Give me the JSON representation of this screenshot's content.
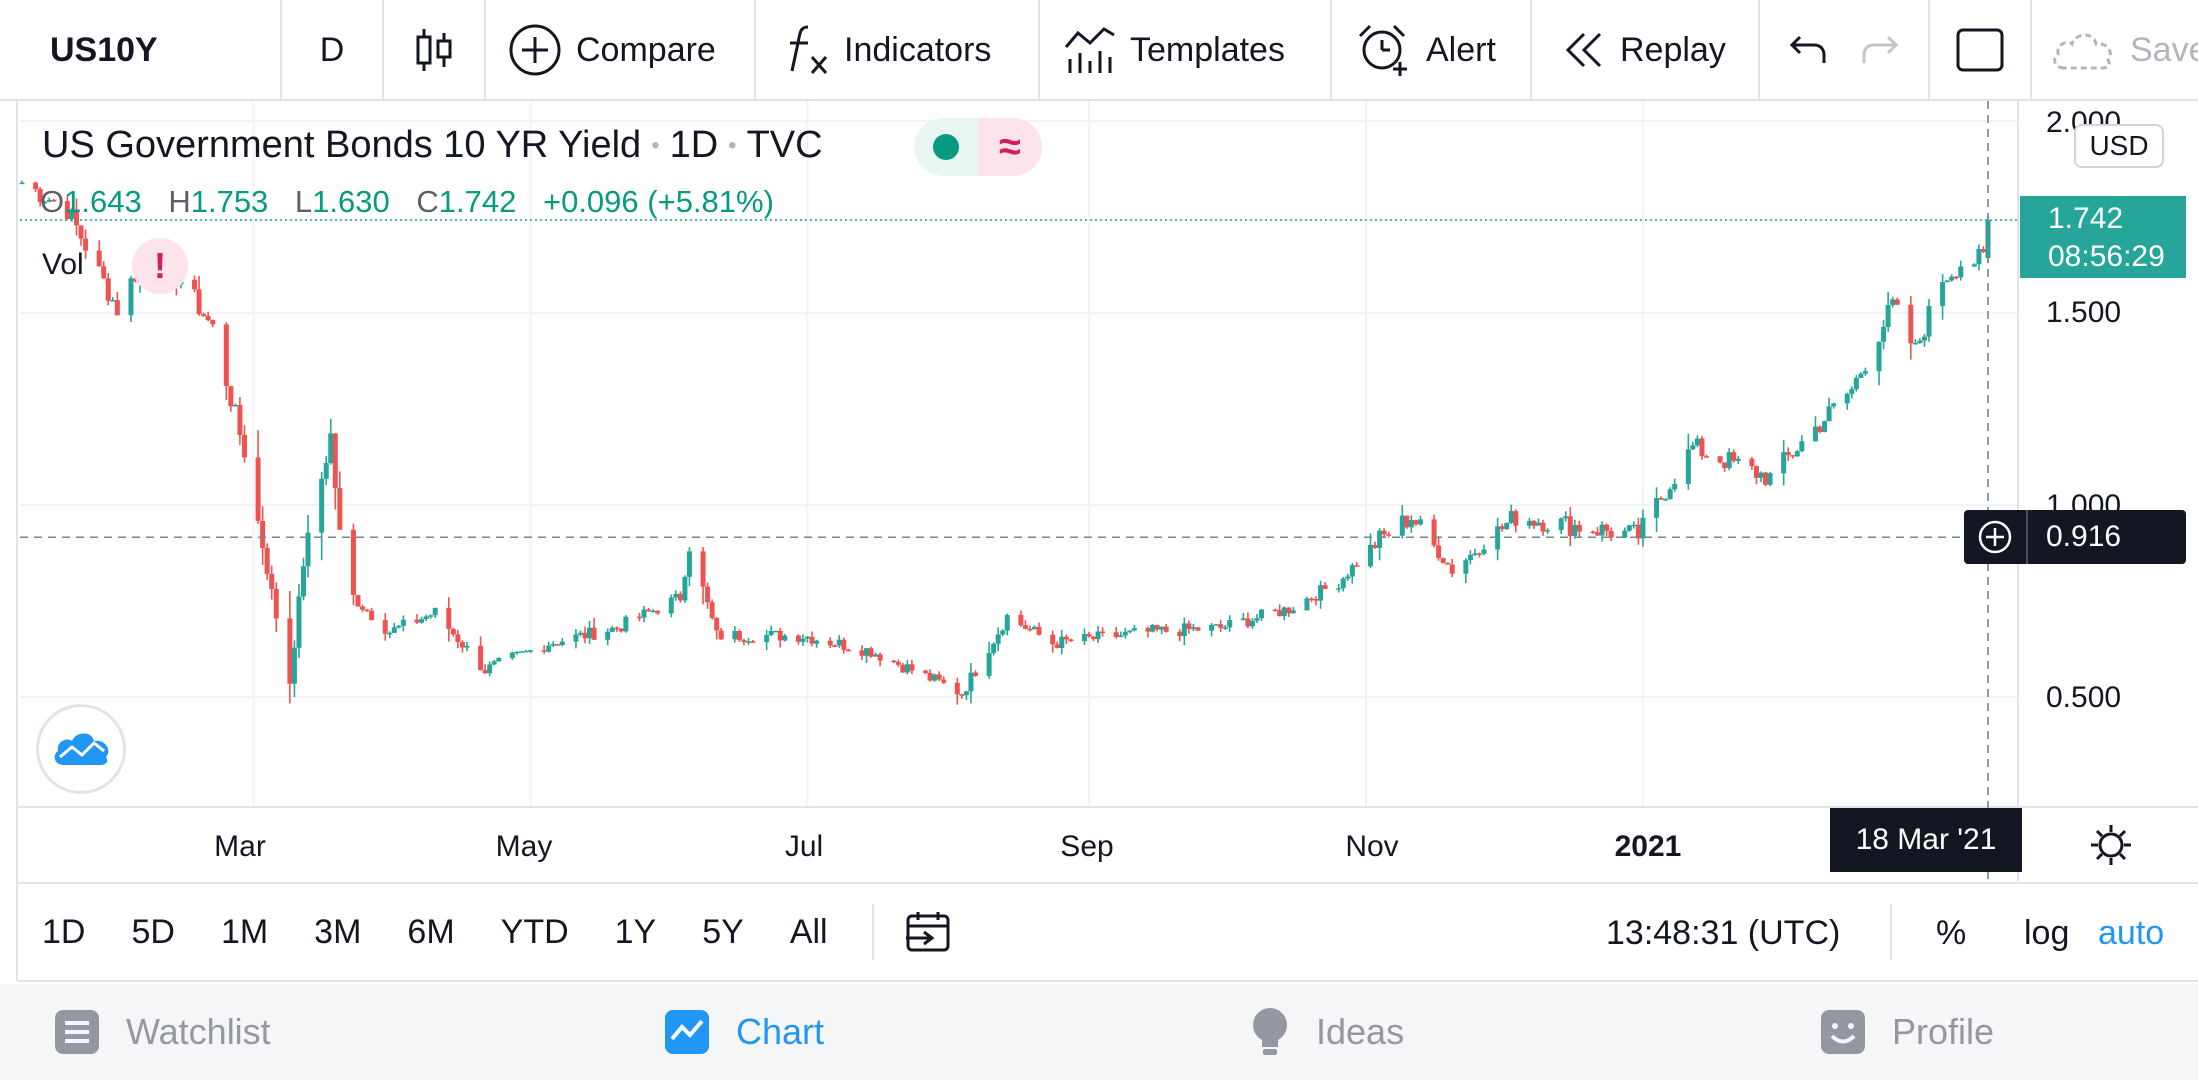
{
  "toolbar": {
    "symbol": "US10Y",
    "interval": "D",
    "compare": "Compare",
    "indicators": "Indicators",
    "templates": "Templates",
    "alert": "Alert",
    "replay": "Replay",
    "save": "Save"
  },
  "legend": {
    "name": "US Government Bonds 10 YR Yield",
    "interval": "1D",
    "exchange": "TVC",
    "delay_symbol": "≈",
    "o_label": "O",
    "o": "1.643",
    "h_label": "H",
    "h": "1.753",
    "l_label": "L",
    "l": "1.630",
    "c_label": "C",
    "c": "1.742",
    "change": "+0.096 (+5.81%)",
    "volume_label": "Vol",
    "warning": "!"
  },
  "price_scale": {
    "currency": "USD",
    "ticks": [
      "2.000",
      "1.500",
      "1.000",
      "0.500"
    ],
    "last_price": "1.742",
    "countdown": "08:56:29",
    "crosshair_price": "0.916"
  },
  "time_axis": {
    "labels": [
      "Mar",
      "May",
      "Jul",
      "Sep",
      "Nov",
      "2021"
    ],
    "crosshair_date": "18 Mar '21"
  },
  "range_bar": {
    "ranges": [
      "1D",
      "5D",
      "1M",
      "3M",
      "6M",
      "YTD",
      "1Y",
      "5Y",
      "All"
    ],
    "clock": "13:48:31 (UTC)",
    "percent": "%",
    "log": "log",
    "auto": "auto"
  },
  "bottom_nav": {
    "watchlist": "Watchlist",
    "chart": "Chart",
    "ideas": "Ideas",
    "profile": "Profile"
  },
  "colors": {
    "up": "#26a69a",
    "down": "#ef5350",
    "accent": "#2196f3",
    "dark_label": "#131722"
  },
  "chart_data": {
    "type": "candlestick",
    "symbol": "US10Y",
    "y_range": [
      0.2,
      2.05
    ],
    "x_range": [
      "2020-01-10",
      "2021-03-18"
    ],
    "anchor_points": [
      [
        "2020-01-10",
        1.84
      ],
      [
        "2020-01-20",
        1.77
      ],
      [
        "2020-01-31",
        1.51
      ],
      [
        "2020-02-06",
        1.65
      ],
      [
        "2020-02-14",
        1.59
      ],
      [
        "2020-02-21",
        1.46
      ],
      [
        "2020-02-28",
        1.14
      ],
      [
        "2020-03-06",
        0.71
      ],
      [
        "2020-03-09",
        0.54
      ],
      [
        "2020-03-12",
        0.85
      ],
      [
        "2020-03-18",
        1.18
      ],
      [
        "2020-03-20",
        0.92
      ],
      [
        "2020-03-23",
        0.76
      ],
      [
        "2020-03-31",
        0.67
      ],
      [
        "2020-04-10",
        0.72
      ],
      [
        "2020-04-21",
        0.57
      ],
      [
        "2020-05-05",
        0.64
      ],
      [
        "2020-05-20",
        0.68
      ],
      [
        "2020-06-03",
        0.76
      ],
      [
        "2020-06-05",
        0.9
      ],
      [
        "2020-06-11",
        0.66
      ],
      [
        "2020-06-30",
        0.66
      ],
      [
        "2020-07-15",
        0.62
      ],
      [
        "2020-08-04",
        0.51
      ],
      [
        "2020-08-14",
        0.71
      ],
      [
        "2020-08-24",
        0.64
      ],
      [
        "2020-09-15",
        0.67
      ],
      [
        "2020-09-30",
        0.68
      ],
      [
        "2020-10-15",
        0.73
      ],
      [
        "2020-10-26",
        0.8
      ],
      [
        "2020-11-03",
        0.9
      ],
      [
        "2020-11-11",
        0.97
      ],
      [
        "2020-11-20",
        0.83
      ],
      [
        "2020-12-04",
        0.97
      ],
      [
        "2020-12-31",
        0.92
      ],
      [
        "2021-01-06",
        1.04
      ],
      [
        "2021-01-12",
        1.15
      ],
      [
        "2021-01-29",
        1.07
      ],
      [
        "2021-02-04",
        1.15
      ],
      [
        "2021-02-16",
        1.3
      ],
      [
        "2021-02-25",
        1.52
      ],
      [
        "2021-03-02",
        1.4
      ],
      [
        "2021-03-08",
        1.59
      ],
      [
        "2021-03-12",
        1.63
      ],
      [
        "2021-03-17",
        1.64
      ],
      [
        "2021-03-18",
        1.742
      ]
    ],
    "last_candle": {
      "date": "2021-03-18",
      "open": 1.643,
      "high": 1.753,
      "low": 1.63,
      "close": 1.742
    }
  }
}
